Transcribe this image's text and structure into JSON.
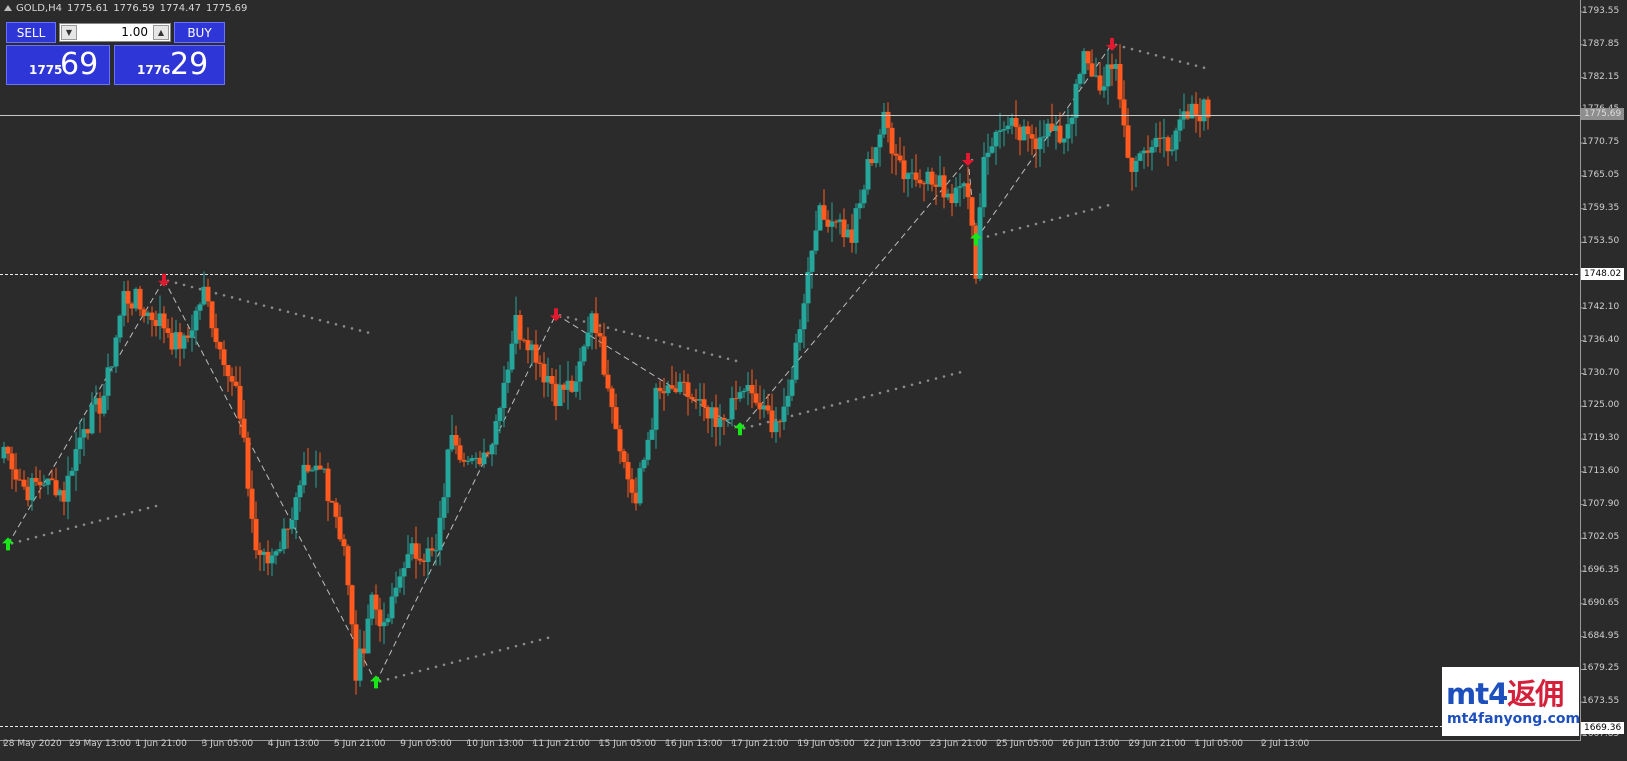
{
  "header": {
    "symbol": "GOLD,H4",
    "open": "1775.61",
    "high": "1776.59",
    "low": "1774.47",
    "close": "1775.69"
  },
  "trade_panel": {
    "sell_label": "SELL",
    "buy_label": "BUY",
    "lot_value": "1.00",
    "sell_price_small": "1775",
    "sell_price_big": "69",
    "buy_price_small": "1776",
    "buy_price_big": "29"
  },
  "price_tags": {
    "bid": "1775.69",
    "level_high": "1748.02",
    "level_low": "1669.36"
  },
  "logo": {
    "line1_a": "mt4",
    "line1_b": "返佣",
    "line2": "mt4fanyong.com"
  },
  "colors": {
    "background": "#2b2b2b",
    "bull": "#26a69a",
    "bear": "#ff5a1f",
    "arrow_up": "#19e619",
    "arrow_down": "#e0192e",
    "dots": "#8a8a8a"
  },
  "chart_data": {
    "type": "candlestick",
    "symbol": "GOLD",
    "timeframe": "H4",
    "ylim": [
      1667.85,
      1795.15
    ],
    "y_ticks": [
      "1793.55",
      "1787.85",
      "1782.15",
      "1776.45",
      "1770.75",
      "1765.05",
      "1759.35",
      "1753.50",
      "1748.02",
      "1742.10",
      "1736.40",
      "1730.70",
      "1725.00",
      "1719.30",
      "1713.60",
      "1707.90",
      "1702.05",
      "1696.35",
      "1690.65",
      "1684.95",
      "1679.25",
      "1673.55",
      "1669.36",
      "1667.85"
    ],
    "x_ticks": [
      "28 May 2020",
      "29 May 13:00",
      "1 Jun 21:00",
      "3 Jun 05:00",
      "4 Jun 13:00",
      "5 Jun 21:00",
      "9 Jun 05:00",
      "10 Jun 13:00",
      "11 Jun 21:00",
      "15 Jun 05:00",
      "16 Jun 13:00",
      "17 Jun 21:00",
      "19 Jun 05:00",
      "22 Jun 13:00",
      "23 Jun 21:00",
      "25 Jun 05:00",
      "26 Jun 13:00",
      "29 Jun 21:00",
      "1 Jul 05:00",
      "2 Jul 13:00"
    ],
    "horizontal_lines": [
      {
        "value": 1775.69,
        "style": "solid"
      },
      {
        "value": 1748.02,
        "style": "dashed"
      },
      {
        "value": 1669.36,
        "style": "dashed"
      }
    ],
    "close_anchors": [
      [
        0,
        1718
      ],
      [
        5,
        1711
      ],
      [
        10,
        1712
      ],
      [
        15,
        1710
      ],
      [
        20,
        1722
      ],
      [
        25,
        1727
      ],
      [
        30,
        1744
      ],
      [
        40,
        1739
      ],
      [
        45,
        1735
      ],
      [
        50,
        1745
      ],
      [
        53,
        1737
      ],
      [
        58,
        1728
      ],
      [
        63,
        1700
      ],
      [
        66,
        1698
      ],
      [
        70,
        1703
      ],
      [
        75,
        1712
      ],
      [
        80,
        1714
      ],
      [
        85,
        1701
      ],
      [
        88,
        1678
      ],
      [
        92,
        1692
      ],
      [
        95,
        1686
      ],
      [
        100,
        1698
      ],
      [
        105,
        1700
      ],
      [
        108,
        1699
      ],
      [
        112,
        1721
      ],
      [
        117,
        1714
      ],
      [
        122,
        1719
      ],
      [
        128,
        1740
      ],
      [
        132,
        1735
      ],
      [
        138,
        1728
      ],
      [
        143,
        1728
      ],
      [
        147,
        1742
      ],
      [
        150,
        1733
      ],
      [
        155,
        1715
      ],
      [
        158,
        1708
      ],
      [
        163,
        1727
      ],
      [
        170,
        1728
      ],
      [
        178,
        1721
      ],
      [
        185,
        1728
      ],
      [
        190,
        1724
      ],
      [
        195,
        1722
      ],
      [
        198,
        1735
      ],
      [
        203,
        1757
      ],
      [
        208,
        1758
      ],
      [
        212,
        1754
      ],
      [
        216,
        1766
      ],
      [
        220,
        1775
      ],
      [
        225,
        1766
      ],
      [
        230,
        1765
      ],
      [
        233,
        1763
      ],
      [
        237,
        1762
      ],
      [
        240,
        1766
      ],
      [
        243,
        1750
      ],
      [
        245,
        1769
      ],
      [
        250,
        1774
      ],
      [
        255,
        1771
      ],
      [
        260,
        1773
      ],
      [
        265,
        1772
      ],
      [
        270,
        1785
      ],
      [
        275,
        1780
      ],
      [
        278,
        1785
      ],
      [
        281,
        1768
      ],
      [
        285,
        1768
      ],
      [
        290,
        1773
      ],
      [
        292,
        1770
      ],
      [
        295,
        1775
      ],
      [
        300,
        1776
      ],
      [
        301,
        1775.69
      ]
    ],
    "arrows": [
      {
        "direction": "up",
        "index": 1,
        "price": 1701
      },
      {
        "direction": "down",
        "index": 40,
        "price": 1747
      },
      {
        "direction": "up",
        "index": 93,
        "price": 1677
      },
      {
        "direction": "down",
        "index": 138,
        "price": 1741
      },
      {
        "direction": "up",
        "index": 184,
        "price": 1721
      },
      {
        "direction": "down",
        "index": 241,
        "price": 1768
      },
      {
        "direction": "up",
        "index": 243,
        "price": 1754
      },
      {
        "direction": "down",
        "index": 277,
        "price": 1788
      }
    ]
  }
}
